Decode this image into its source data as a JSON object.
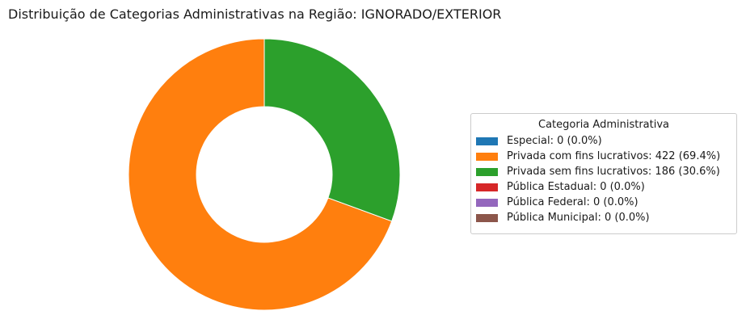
{
  "chart_data": {
    "type": "pie",
    "title": "Distribuição de Categorias Administrativas na Região: IGNORADO/EXTERIOR",
    "donut": true,
    "legend": {
      "title": "Categoria Administrativa",
      "placement": "right"
    },
    "slices": [
      {
        "category": "Especial",
        "value": 0,
        "percent": 0.0,
        "color": "#1f77b4",
        "legend_label": "Especial: 0 (0.0%)"
      },
      {
        "category": "Privada com fins lucrativos",
        "value": 422,
        "percent": 69.4,
        "color": "#ff7f0e",
        "legend_label": "Privada com fins lucrativos: 422 (69.4%)"
      },
      {
        "category": "Privada sem fins lucrativos",
        "value": 186,
        "percent": 30.6,
        "color": "#2ca02c",
        "legend_label": "Privada sem fins lucrativos: 186 (30.6%)"
      },
      {
        "category": "Pública Estadual",
        "value": 0,
        "percent": 0.0,
        "color": "#d62728",
        "legend_label": "Pública Estadual: 0 (0.0%)"
      },
      {
        "category": "Pública Federal",
        "value": 0,
        "percent": 0.0,
        "color": "#9467bd",
        "legend_label": "Pública Federal: 0 (0.0%)"
      },
      {
        "category": "Pública Municipal",
        "value": 0,
        "percent": 0.0,
        "color": "#8c564b",
        "legend_label": "Pública Municipal: 0 (0.0%)"
      }
    ]
  }
}
